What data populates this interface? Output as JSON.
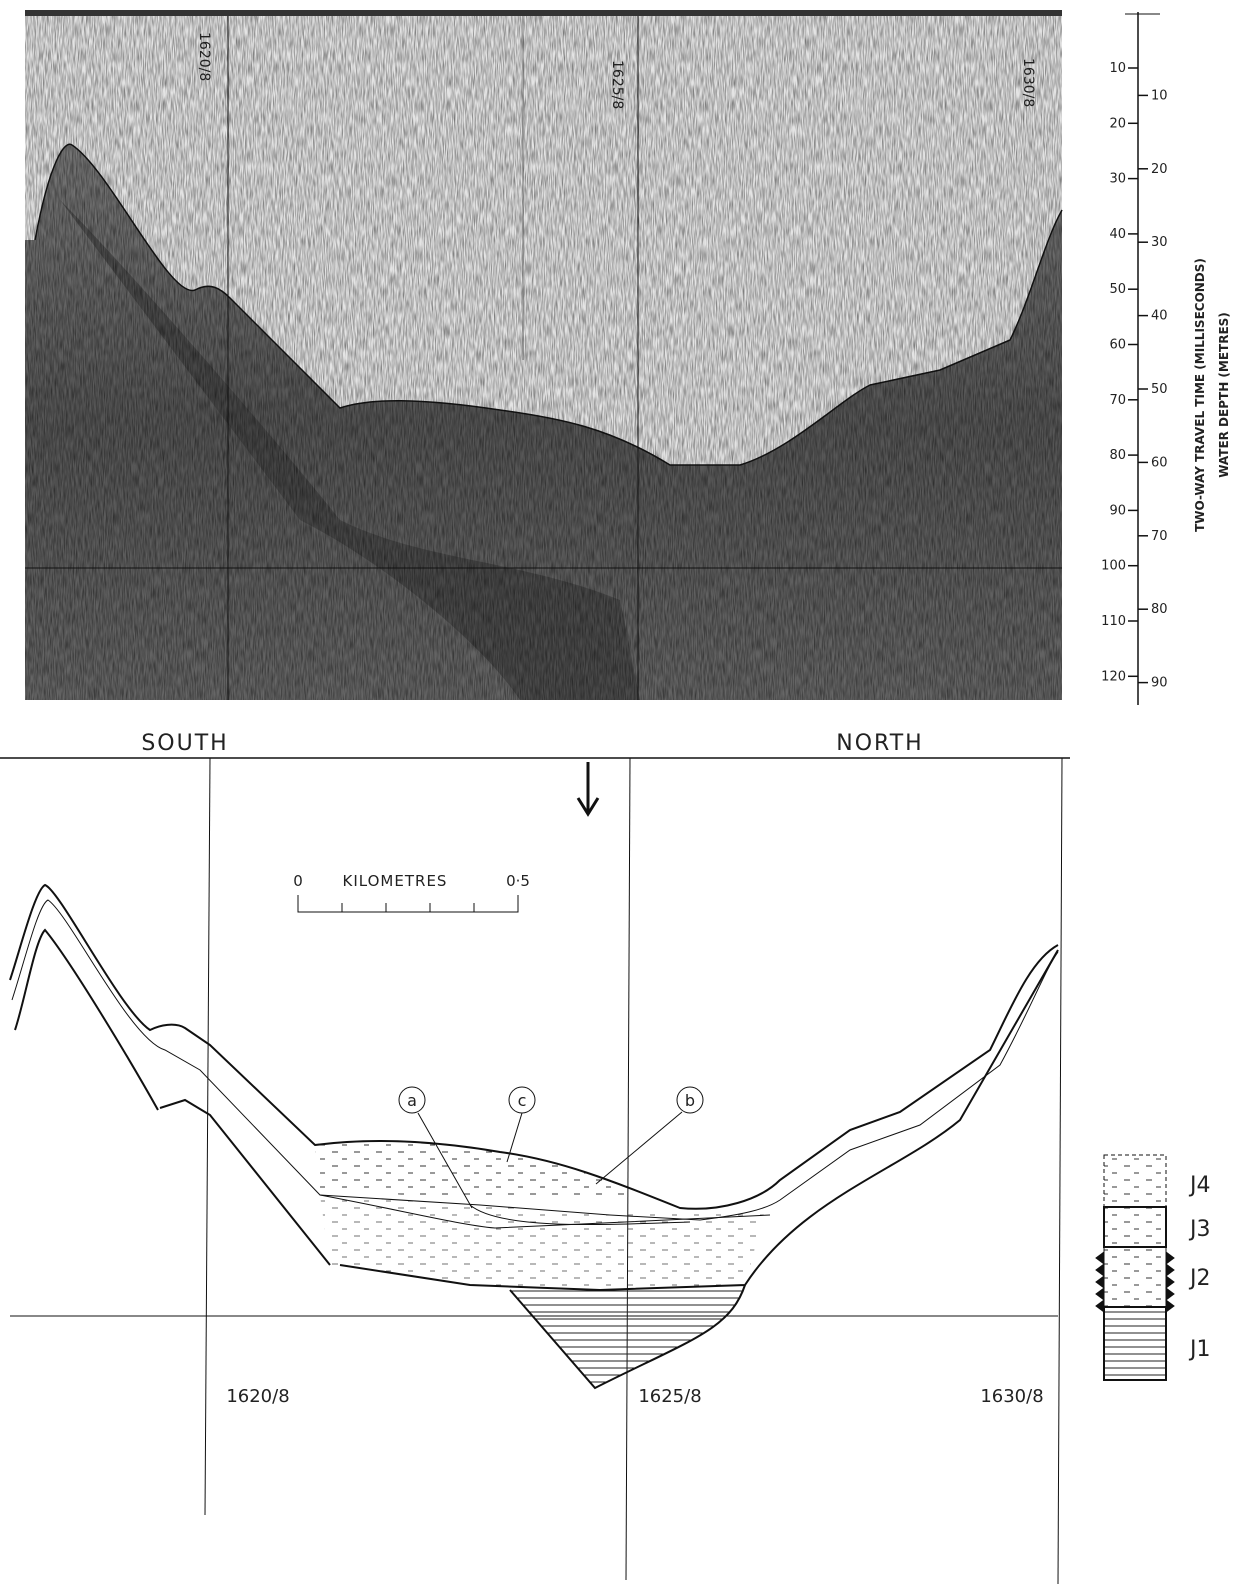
{
  "record": {
    "fix_labels": [
      "1620/8",
      "1625/8",
      "1630/8"
    ],
    "time_axis": {
      "label": "TWO-WAY TRAVEL TIME (MILLISECONDS)",
      "ticks": [
        10,
        20,
        30,
        40,
        50,
        60,
        70,
        80,
        90,
        100,
        110,
        120
      ]
    },
    "depth_axis": {
      "label": "WATER DEPTH (METRES)",
      "ticks": [
        10,
        20,
        30,
        40,
        50,
        60,
        70,
        80,
        90
      ]
    }
  },
  "interpretation": {
    "directions": [
      "SOUTH",
      "NORTH"
    ],
    "scale": {
      "start": "0",
      "unit": "KILOMETRES",
      "end": "0·5"
    },
    "callouts": [
      "a",
      "c",
      "b"
    ],
    "fix_labels": [
      "1620/8",
      "1625/8",
      "1630/8"
    ]
  },
  "legend": {
    "units": [
      "J4",
      "J3",
      "J2",
      "J1"
    ]
  }
}
